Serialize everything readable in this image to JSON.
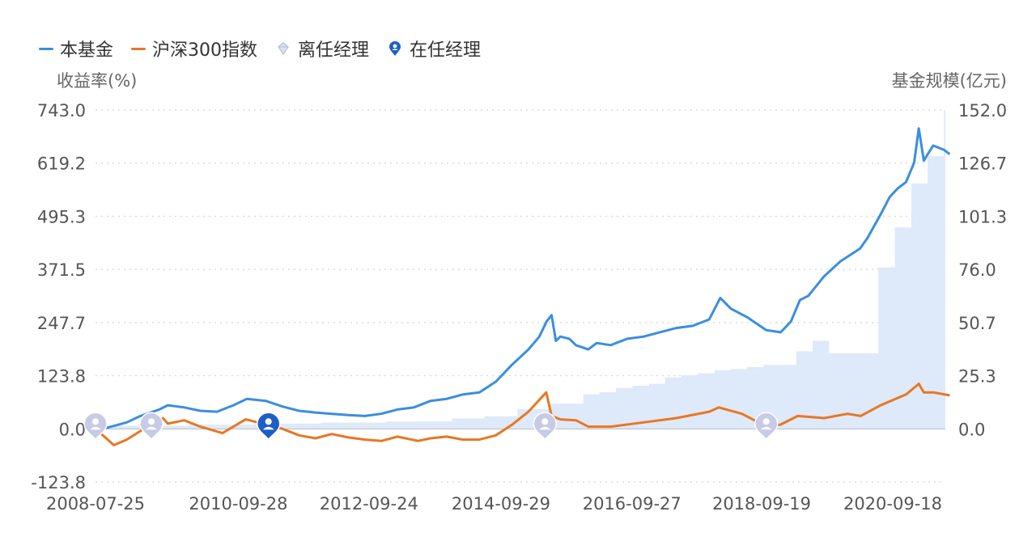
{
  "legend": {
    "fund": "本基金",
    "index": "沪深300指数",
    "former_manager": "离任经理",
    "current_manager": "在任经理"
  },
  "chart_data": {
    "type": "line",
    "ylabel_left": "收益率(%)",
    "ylabel_right": "基金规模(亿元)",
    "y_ticks_left": [
      "743.0",
      "619.2",
      "495.3",
      "371.5",
      "247.7",
      "123.8",
      "0.0",
      "-123.8"
    ],
    "y_ticks_right": [
      "152.0",
      "126.7",
      "101.3",
      "76.0",
      "50.7",
      "25.3",
      "0.0"
    ],
    "x_ticks": [
      "2008-07-25",
      "2010-09-28",
      "2012-09-24",
      "2014-09-29",
      "2016-09-27",
      "2018-09-19",
      "2020-09-18"
    ],
    "ylim_left": [
      -123.8,
      743.0
    ],
    "ylim_right": [
      -25.3,
      152.0
    ],
    "grid": "horizontal-dotted",
    "colors": {
      "fund": "#3a8ee0",
      "index": "#e87722",
      "scale": "#dce8fa",
      "former": "#c7cbe6",
      "current": "#1d5fc5"
    },
    "series": [
      {
        "name": "本基金",
        "x": [
          "2008-07-25",
          "2008-10-01",
          "2009-01-15",
          "2009-04-01",
          "2009-07-15",
          "2009-09-01",
          "2009-12-01",
          "2010-03-01",
          "2010-06-01",
          "2010-09-01",
          "2010-11-15",
          "2011-03-01",
          "2011-06-01",
          "2011-09-01",
          "2011-12-01",
          "2012-03-01",
          "2012-06-01",
          "2012-09-01",
          "2012-12-01",
          "2013-03-01",
          "2013-06-01",
          "2013-09-01",
          "2013-12-01",
          "2014-03-01",
          "2014-06-01",
          "2014-09-01",
          "2014-12-01",
          "2015-03-01",
          "2015-05-01",
          "2015-06-10",
          "2015-07-08",
          "2015-08-01",
          "2015-08-26",
          "2015-10-15",
          "2015-11-20",
          "2016-01-28",
          "2016-03-15",
          "2016-06-01",
          "2016-09-01",
          "2016-12-01",
          "2017-03-01",
          "2017-06-01",
          "2017-09-01",
          "2017-12-01",
          "2018-02-01",
          "2018-04-01",
          "2018-07-01",
          "2018-10-15",
          "2019-01-03",
          "2019-03-01",
          "2019-04-20",
          "2019-06-06",
          "2019-09-01",
          "2019-12-01",
          "2020-03-20",
          "2020-05-01",
          "2020-07-13",
          "2020-09-01",
          "2020-10-15",
          "2020-12-01",
          "2021-01-15",
          "2021-02-10",
          "2021-03-10",
          "2021-05-01",
          "2021-07-01",
          "2021-08-01"
        ],
        "y": [
          0,
          3,
          15,
          30,
          45,
          55,
          50,
          42,
          40,
          55,
          70,
          65,
          52,
          42,
          38,
          35,
          32,
          30,
          35,
          45,
          50,
          65,
          70,
          80,
          85,
          110,
          150,
          185,
          215,
          250,
          265,
          205,
          215,
          210,
          195,
          185,
          200,
          195,
          210,
          215,
          225,
          235,
          240,
          255,
          305,
          280,
          260,
          230,
          225,
          250,
          300,
          310,
          355,
          390,
          420,
          445,
          500,
          540,
          560,
          575,
          620,
          700,
          625,
          660,
          650,
          640
        ]
      },
      {
        "name": "沪深300指数",
        "x": [
          "2008-07-25",
          "2008-10-01",
          "2008-11-04",
          "2009-01-15",
          "2009-04-01",
          "2009-08-04",
          "2009-09-01",
          "2009-12-01",
          "2010-03-01",
          "2010-07-02",
          "2010-11-08",
          "2011-03-01",
          "2011-06-01",
          "2011-09-01",
          "2011-12-01",
          "2012-03-01",
          "2012-06-01",
          "2012-09-01",
          "2012-12-04",
          "2013-03-01",
          "2013-06-25",
          "2013-09-01",
          "2013-12-01",
          "2014-03-01",
          "2014-06-01",
          "2014-09-01",
          "2014-12-01",
          "2015-03-01",
          "2015-06-08",
          "2015-07-08",
          "2015-08-26",
          "2015-11-20",
          "2016-01-28",
          "2016-06-01",
          "2016-12-01",
          "2017-06-01",
          "2017-12-01",
          "2018-01-24",
          "2018-06-01",
          "2018-10-18",
          "2019-01-03",
          "2019-04-08",
          "2019-09-01",
          "2020-01-10",
          "2020-03-23",
          "2020-07-13",
          "2020-12-01",
          "2021-02-10",
          "2021-03-10",
          "2021-05-01",
          "2021-08-01"
        ],
        "y": [
          0,
          -25,
          -38,
          -25,
          -5,
          25,
          12,
          20,
          5,
          -10,
          22,
          10,
          0,
          -15,
          -22,
          -12,
          -20,
          -25,
          -28,
          -18,
          -28,
          -22,
          -18,
          -25,
          -25,
          -15,
          10,
          40,
          85,
          30,
          22,
          20,
          5,
          5,
          15,
          25,
          40,
          50,
          35,
          5,
          10,
          30,
          25,
          35,
          30,
          55,
          80,
          105,
          85,
          85,
          78
        ]
      }
    ],
    "scale_series": {
      "name": "基金规模",
      "x": [
        "2008-07-25",
        "2009-12-31",
        "2010-12-31",
        "2011-12-31",
        "2012-12-31",
        "2013-06-30",
        "2013-12-31",
        "2014-06-30",
        "2014-12-31",
        "2015-06-30",
        "2015-12-31",
        "2016-03-31",
        "2016-06-30",
        "2016-09-30",
        "2016-12-31",
        "2017-03-31",
        "2017-06-30",
        "2017-09-30",
        "2017-12-31",
        "2018-03-31",
        "2018-06-30",
        "2018-09-30",
        "2018-12-31",
        "2019-03-31",
        "2019-06-30",
        "2019-09-30",
        "2019-12-31",
        "2020-03-31",
        "2020-06-30",
        "2020-09-30",
        "2020-12-31",
        "2021-03-31",
        "2021-06-30",
        "2021-08-01"
      ],
      "y": [
        1.5,
        2.0,
        2.5,
        3.0,
        3.5,
        3.6,
        5.0,
        6.0,
        9.5,
        12.0,
        16.5,
        17.5,
        19.5,
        20.5,
        21.5,
        24.5,
        25.5,
        26.5,
        28.0,
        28.5,
        29.5,
        30.5,
        30.5,
        37.0,
        42.0,
        36.0,
        36.0,
        36.0,
        77.0,
        96.0,
        117.0,
        130.0,
        152.0,
        152.0
      ]
    },
    "manager_markers": [
      {
        "date": "2008-07-25",
        "status": "离任经理",
        "icon": "former-manager-pin-icon"
      },
      {
        "date": "2009-06-01",
        "status": "离任经理",
        "icon": "former-manager-pin-icon"
      },
      {
        "date": "2011-03-15",
        "status": "在任经理",
        "icon": "current-manager-pin-icon"
      },
      {
        "date": "2015-06-01",
        "status": "离任经理",
        "icon": "former-manager-pin-icon"
      },
      {
        "date": "2018-10-15",
        "status": "离任经理",
        "icon": "former-manager-pin-icon"
      }
    ]
  }
}
